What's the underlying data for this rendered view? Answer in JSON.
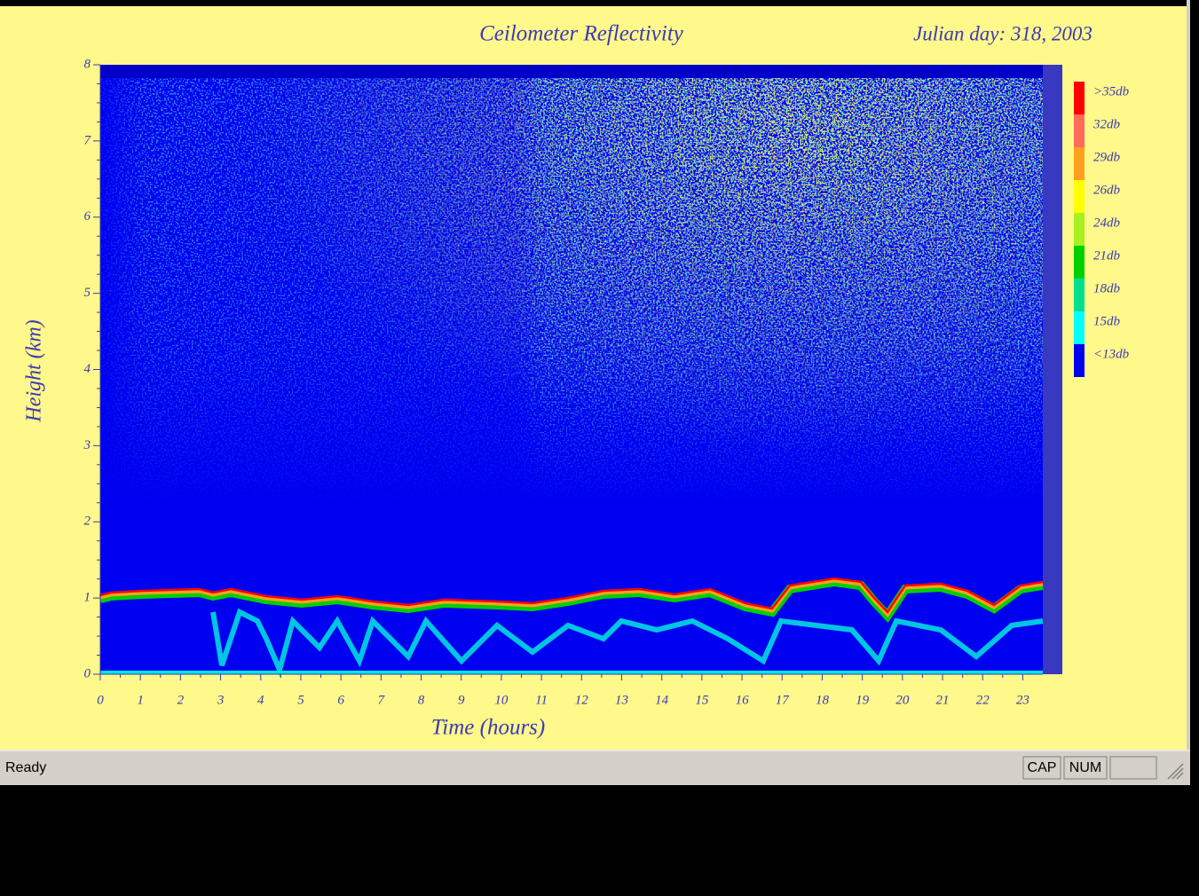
{
  "chart_data": {
    "type": "heatmap",
    "title": "Ceilometer Reflectivity",
    "subtitle": "Julian day: 318, 2003",
    "x_label": "Time (hours)",
    "y_label": "Height (km)",
    "xlim": [
      0,
      23.5
    ],
    "xticks": [
      0,
      1,
      2,
      3,
      4,
      5,
      6,
      7,
      8,
      9,
      10,
      11,
      12,
      13,
      14,
      15,
      16,
      17,
      18,
      19,
      20,
      21,
      22,
      23
    ],
    "ylim": [
      0,
      8
    ],
    "yticks": [
      0,
      1,
      2,
      3,
      4,
      5,
      6,
      7,
      8
    ],
    "colorbar": [
      {
        "label": ">35db",
        "color": "#ff0000"
      },
      {
        "label": "32db",
        "color": "#ff6a5a"
      },
      {
        "label": "29db",
        "color": "#ffa020"
      },
      {
        "label": "26db",
        "color": "#ffff00"
      },
      {
        "label": "24db",
        "color": "#a8f020"
      },
      {
        "label": "21db",
        "color": "#00d000"
      },
      {
        "label": "18db",
        "color": "#00e090"
      },
      {
        "label": "15db",
        "color": "#00ffff"
      },
      {
        "label": "<13db",
        "color": "#0000f0"
      }
    ]
  },
  "status_bar": {
    "text": "Ready",
    "indicators": [
      "CAP",
      "NUM"
    ]
  }
}
